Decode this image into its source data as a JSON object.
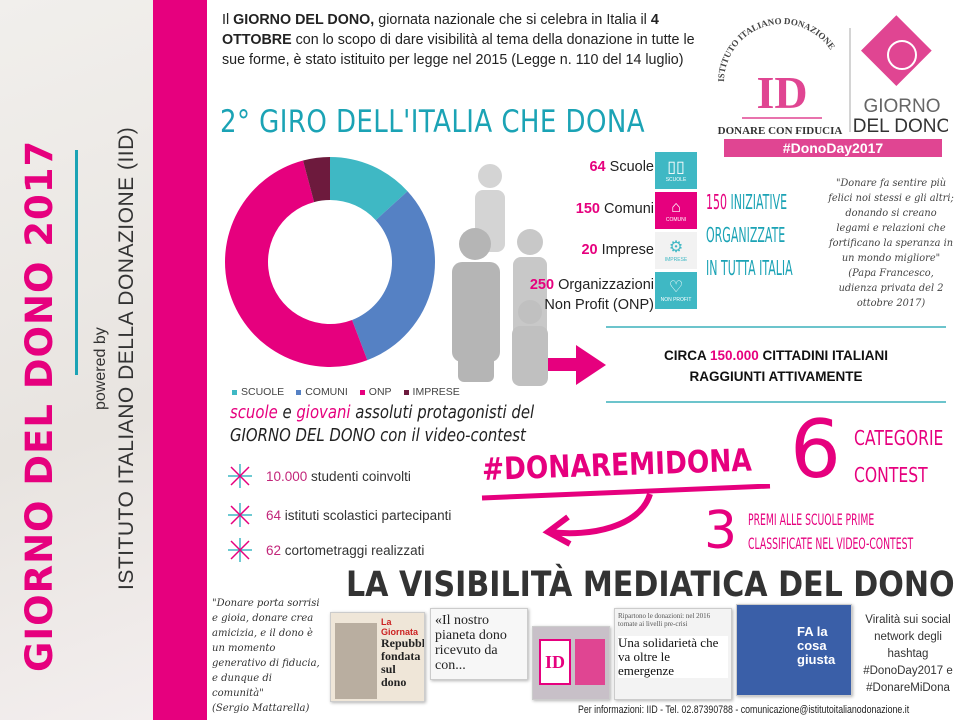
{
  "sidebar": {
    "title": "GIORNO DEL DONO 2017",
    "powered_by": "powered by",
    "organization": "ISTITUTO ITALIANO DELLA DONAZIONE (IID)"
  },
  "intro": {
    "p1": "Il ",
    "b1": "GIORNO DEL DONO,",
    "p2": " giornata nazionale che si celebra in Italia il ",
    "b2": "4 OTTOBRE",
    "p3": " con lo scopo di dare visibilità al tema della donazione in tutte le sue forme, è stato istituito per legge nel 2015 (Legge n. 110 del 14 luglio)"
  },
  "logo": {
    "arc_text": "ISTITUTO ITALIANO DONAZIONE",
    "mark": "ID",
    "tagline": "DONARE CON FIDUCIA",
    "brand_line1": "GIORNO",
    "brand_line2": "DEL DONO",
    "hashtag": "#DonoDay2017"
  },
  "heading": "2° GIRO DELL'ITALIA CHE DONA",
  "chart_data": {
    "type": "pie",
    "donut": true,
    "categories": [
      "SCUOLE",
      "COMUNI",
      "ONP",
      "IMPRESE"
    ],
    "values": [
      64,
      150,
      250,
      20
    ],
    "colors": [
      "#3fb8c4",
      "#5581c4",
      "#e6007e",
      "#6d1a3d"
    ],
    "legend": "bottom"
  },
  "stats": [
    {
      "num": "64",
      "label": "Scuole",
      "icon": "book-icon",
      "tag": "SCUOLE",
      "color": "#3fb8c4"
    },
    {
      "num": "150",
      "label": "Comuni",
      "icon": "building-icon",
      "tag": "COMUNI",
      "color": "#e6007e"
    },
    {
      "num": "20",
      "label": "Imprese",
      "icon": "gears-icon",
      "tag": "IMPRESE",
      "color": "#f2f2f2"
    },
    {
      "num": "250",
      "label": "Organizzazioni",
      "label2": "Non Profit (ONP)",
      "icon": "heart-icon",
      "tag": "NON PROFIT",
      "color": "#3fb8c4"
    }
  ],
  "iniziative": {
    "num": "150",
    "line1": " INIZIATIVE",
    "line2": "ORGANIZZATE",
    "line3": "IN TUTTA ITALIA"
  },
  "papa_quote": {
    "text": "\"Donare fa sentire più felici noi stessi e gli altri; donando si creano legami e relazioni che fortificano la speranza in un mondo migliore\"",
    "source": "(Papa Francesco, udienza privata del 2 ottobre 2017)"
  },
  "circa": {
    "pre": "CIRCA ",
    "num": "150.000",
    "post": " CITTADINI ITALIANI",
    "line2": "RAGGIUNTI ATTIVAMENTE"
  },
  "contest": {
    "w1": "scuole",
    "w2": " e ",
    "w3": "giovani",
    "w4": " assoluti protagonisti del",
    "line2": "GIORNO DEL DONO con il video-contest"
  },
  "bullets": [
    {
      "num": "10.000",
      "text": " studenti coinvolti"
    },
    {
      "num": "64",
      "text": " istituti scolastici partecipanti"
    },
    {
      "num": "62",
      "text": " cortometraggi realizzati"
    }
  ],
  "hashtag": "#DONAREMIDONA",
  "categorie": {
    "num": "6",
    "line1": "CATEGORIE",
    "line2": "CONTEST"
  },
  "premi": {
    "num": "3",
    "line1": "PREMI ALLE SCUOLE PRIME",
    "line2": "CLASSIFICATE NEL VIDEO-CONTEST"
  },
  "media_heading": "LA VISIBILITÀ MEDIATICA DEL DONO",
  "mattarella": {
    "text": "\"Donare porta sorrisi e gioia, donare crea amicizia, e il dono è un momento generativo di fiducia, e dunque di comunità\"",
    "source": "(Sergio Mattarella)"
  },
  "clippings": {
    "c1_kicker": "La Giornata",
    "c1_title": "Repubblica fondata sul dono",
    "c2_title": "«Il nostro pianeta dono ricevuto da con...",
    "c3_head": "Ripartono le donazioni: nel 2016 tornate ai livelli pre-crisi",
    "c3_title": "Una solidarietà che va oltre le emergenze",
    "c4_title": "FA la cosa giusta"
  },
  "viral": "Viralità sui social network degli hashtag #DonoDay2017 e #DonareMiDona",
  "footer": "Per informazioni: IID - Tel. 02.87390788 - comunicazione@istitutoitalianodonazione.it"
}
